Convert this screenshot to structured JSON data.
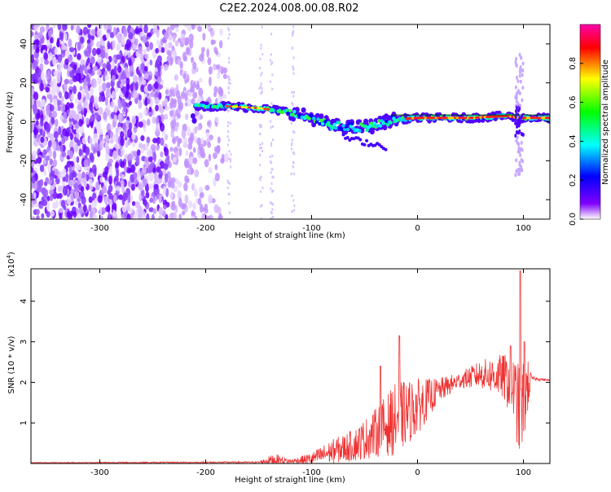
{
  "title": "C2E2.2024.008.00.08.R02",
  "chart_data": [
    {
      "type": "heatmap",
      "xlabel": "Height of straight line (km)",
      "ylabel": "Frequency (Hz)",
      "xlim": [
        -365,
        125
      ],
      "ylim": [
        -50,
        50
      ],
      "xticks": [
        -300,
        -200,
        -100,
        0,
        100
      ],
      "yticks": [
        -40,
        -20,
        0,
        20,
        40
      ],
      "colorbar": {
        "label": "Normalized spectral amplitude",
        "range": [
          0,
          1
        ],
        "ticks": [
          "0.0",
          "0.2",
          "0.4",
          "0.6",
          "0.8"
        ],
        "colormap": [
          "#ffffff",
          "#8000ff",
          "#0000ff",
          "#00ffff",
          "#00ff00",
          "#ffff00",
          "#ff0000",
          "#ff00aa"
        ]
      },
      "features": {
        "noise_region_x": [
          -365,
          -180
        ],
        "signal_trace": [
          {
            "x": -210,
            "y": 8
          },
          {
            "x": -180,
            "y": 8
          },
          {
            "x": -150,
            "y": 7
          },
          {
            "x": -120,
            "y": 5
          },
          {
            "x": -100,
            "y": 2
          },
          {
            "x": -80,
            "y": -2
          },
          {
            "x": -60,
            "y": -3
          },
          {
            "x": -40,
            "y": -2
          },
          {
            "x": -25,
            "y": 1
          },
          {
            "x": 0,
            "y": 2
          },
          {
            "x": 50,
            "y": 2
          },
          {
            "x": 85,
            "y": 3
          },
          {
            "x": 95,
            "y": 2
          },
          {
            "x": 125,
            "y": 2
          }
        ]
      }
    },
    {
      "type": "line",
      "xlabel": "Height of straight line (km)",
      "ylabel": "SNR (10 * v/v)",
      "y_multiplier": "(x10",
      "y_multiplier_exp": "4",
      "y_multiplier_close": ")",
      "xlim": [
        -365,
        125
      ],
      "ylim": [
        0,
        4.8
      ],
      "xticks": [
        -300,
        -200,
        -100,
        0,
        100
      ],
      "yticks": [
        1,
        2,
        3,
        4
      ],
      "color": "#ee3333",
      "envelope": [
        {
          "x": -365,
          "base": 0.02,
          "amp": 0.01
        },
        {
          "x": -150,
          "base": 0.03,
          "amp": 0.02
        },
        {
          "x": -135,
          "base": 0.1,
          "amp": 0.15
        },
        {
          "x": -120,
          "base": 0.05,
          "amp": 0.05
        },
        {
          "x": -100,
          "base": 0.12,
          "amp": 0.15
        },
        {
          "x": -80,
          "base": 0.3,
          "amp": 0.3
        },
        {
          "x": -60,
          "base": 0.45,
          "amp": 0.4
        },
        {
          "x": -40,
          "base": 0.75,
          "amp": 0.6
        },
        {
          "x": -20,
          "base": 1.1,
          "amp": 0.9
        },
        {
          "x": 0,
          "base": 1.4,
          "amp": 0.7
        },
        {
          "x": 20,
          "base": 1.8,
          "amp": 0.3
        },
        {
          "x": 40,
          "base": 2.05,
          "amp": 0.2
        },
        {
          "x": 60,
          "base": 2.2,
          "amp": 0.35
        },
        {
          "x": 80,
          "base": 2.15,
          "amp": 0.55
        },
        {
          "x": 90,
          "base": 1.9,
          "amp": 0.8
        },
        {
          "x": 97,
          "base": 1.2,
          "amp": 1.2
        },
        {
          "x": 102,
          "base": 1.8,
          "amp": 1.0
        },
        {
          "x": 108,
          "base": 2.1,
          "amp": 0.05
        },
        {
          "x": 125,
          "base": 2.05,
          "amp": 0.02
        }
      ],
      "spikes": [
        {
          "x": -17,
          "y": 3.15
        },
        {
          "x": -35,
          "y": 2.4
        },
        {
          "x": 97,
          "y": 4.75
        },
        {
          "x": 101,
          "y": 3.0
        },
        {
          "x": 88,
          "y": 2.9
        }
      ]
    }
  ]
}
